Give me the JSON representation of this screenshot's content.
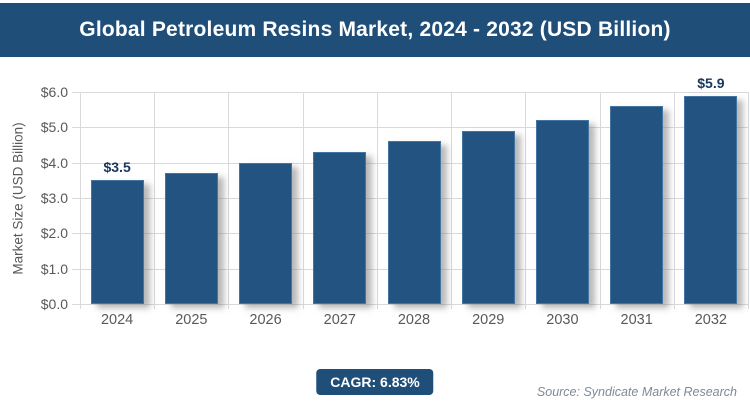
{
  "title_bar": {
    "title": "Global Petroleum Resins Market, 2024 - 2032 (USD Billion)"
  },
  "chart_data": {
    "type": "bar",
    "title": "Global Petroleum Resins Market, 2024 - 2032 (USD Billion)",
    "categories": [
      "2024",
      "2025",
      "2026",
      "2027",
      "2028",
      "2029",
      "2030",
      "2031",
      "2032"
    ],
    "values": [
      3.5,
      3.7,
      4.0,
      4.3,
      4.6,
      4.9,
      5.2,
      5.6,
      5.9
    ],
    "bar_labels": [
      "$3.5",
      "",
      "",
      "",
      "",
      "",
      "",
      "",
      "$5.9"
    ],
    "xlabel": "",
    "ylabel": "Market Size (USD Billion)",
    "ylim": [
      0,
      6
    ],
    "ytick_step": 1,
    "ytick_labels": [
      "$0.0",
      "$1.0",
      "$2.0",
      "$3.0",
      "$4.0",
      "$5.0",
      "$6.0"
    ],
    "grid": true,
    "legend": false
  },
  "footer": {
    "cagr_label": "CAGR: 6.83%",
    "source": "Source: Syndicate Market Research"
  },
  "colors": {
    "header_navy": "#1f4e79",
    "bar_fill": "#235380",
    "bar_edge": "#44749f",
    "gridline": "#d9d9d9",
    "axis_text": "#595959",
    "data_label_navy": "#17375e",
    "source_gray": "#7e8a97"
  }
}
